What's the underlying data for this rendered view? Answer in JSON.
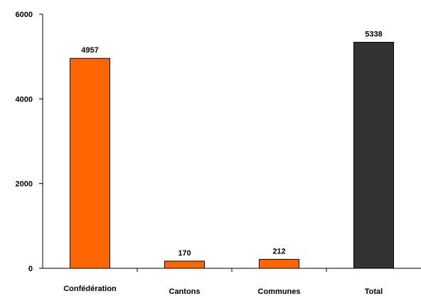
{
  "chart_data": {
    "type": "bar",
    "categories": [
      "Confédération",
      "Cantons",
      "Communes",
      "Total"
    ],
    "values": [
      4957,
      170,
      212,
      5338
    ],
    "data_labels": [
      "4957",
      "170",
      "212",
      "5338"
    ],
    "bar_colors": [
      "#ff6600",
      "#ff6600",
      "#ff6600",
      "#333333"
    ],
    "title": "",
    "xlabel": "",
    "ylabel": "",
    "ylim": [
      0,
      6000
    ],
    "yticks": [
      0,
      2000,
      4000,
      6000
    ],
    "ytick_labels": [
      "0",
      "2000",
      "4000",
      "6000"
    ],
    "grid": false,
    "legend": "none"
  }
}
